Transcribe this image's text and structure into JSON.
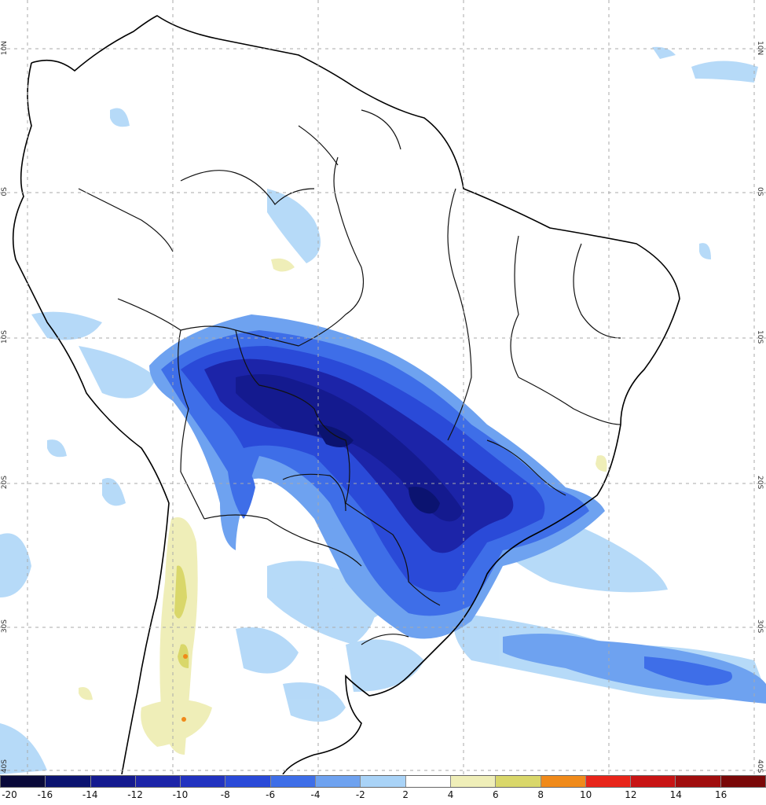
{
  "map": {
    "grid_labels": [
      "10N",
      "0S",
      "10S",
      "20S",
      "30S",
      "40S"
    ]
  },
  "legend": {
    "ticks": [
      "-20",
      "-16",
      "-14",
      "-12",
      "-10",
      "-8",
      "-6",
      "-4",
      "-2",
      "2",
      "4",
      "6",
      "8",
      "10",
      "12",
      "14",
      "16"
    ],
    "colors": [
      "#0a0a3a",
      "#0b1370",
      "#141a8f",
      "#1c24a8",
      "#2233c0",
      "#2a4ad8",
      "#3e6ee8",
      "#6ea2f0",
      "#a9d3f7",
      "#ffffff",
      "#efeeb8",
      "#d9d76a",
      "#f08a1a",
      "#e8251a",
      "#c81414",
      "#a00e0e",
      "#7a0808"
    ]
  }
}
